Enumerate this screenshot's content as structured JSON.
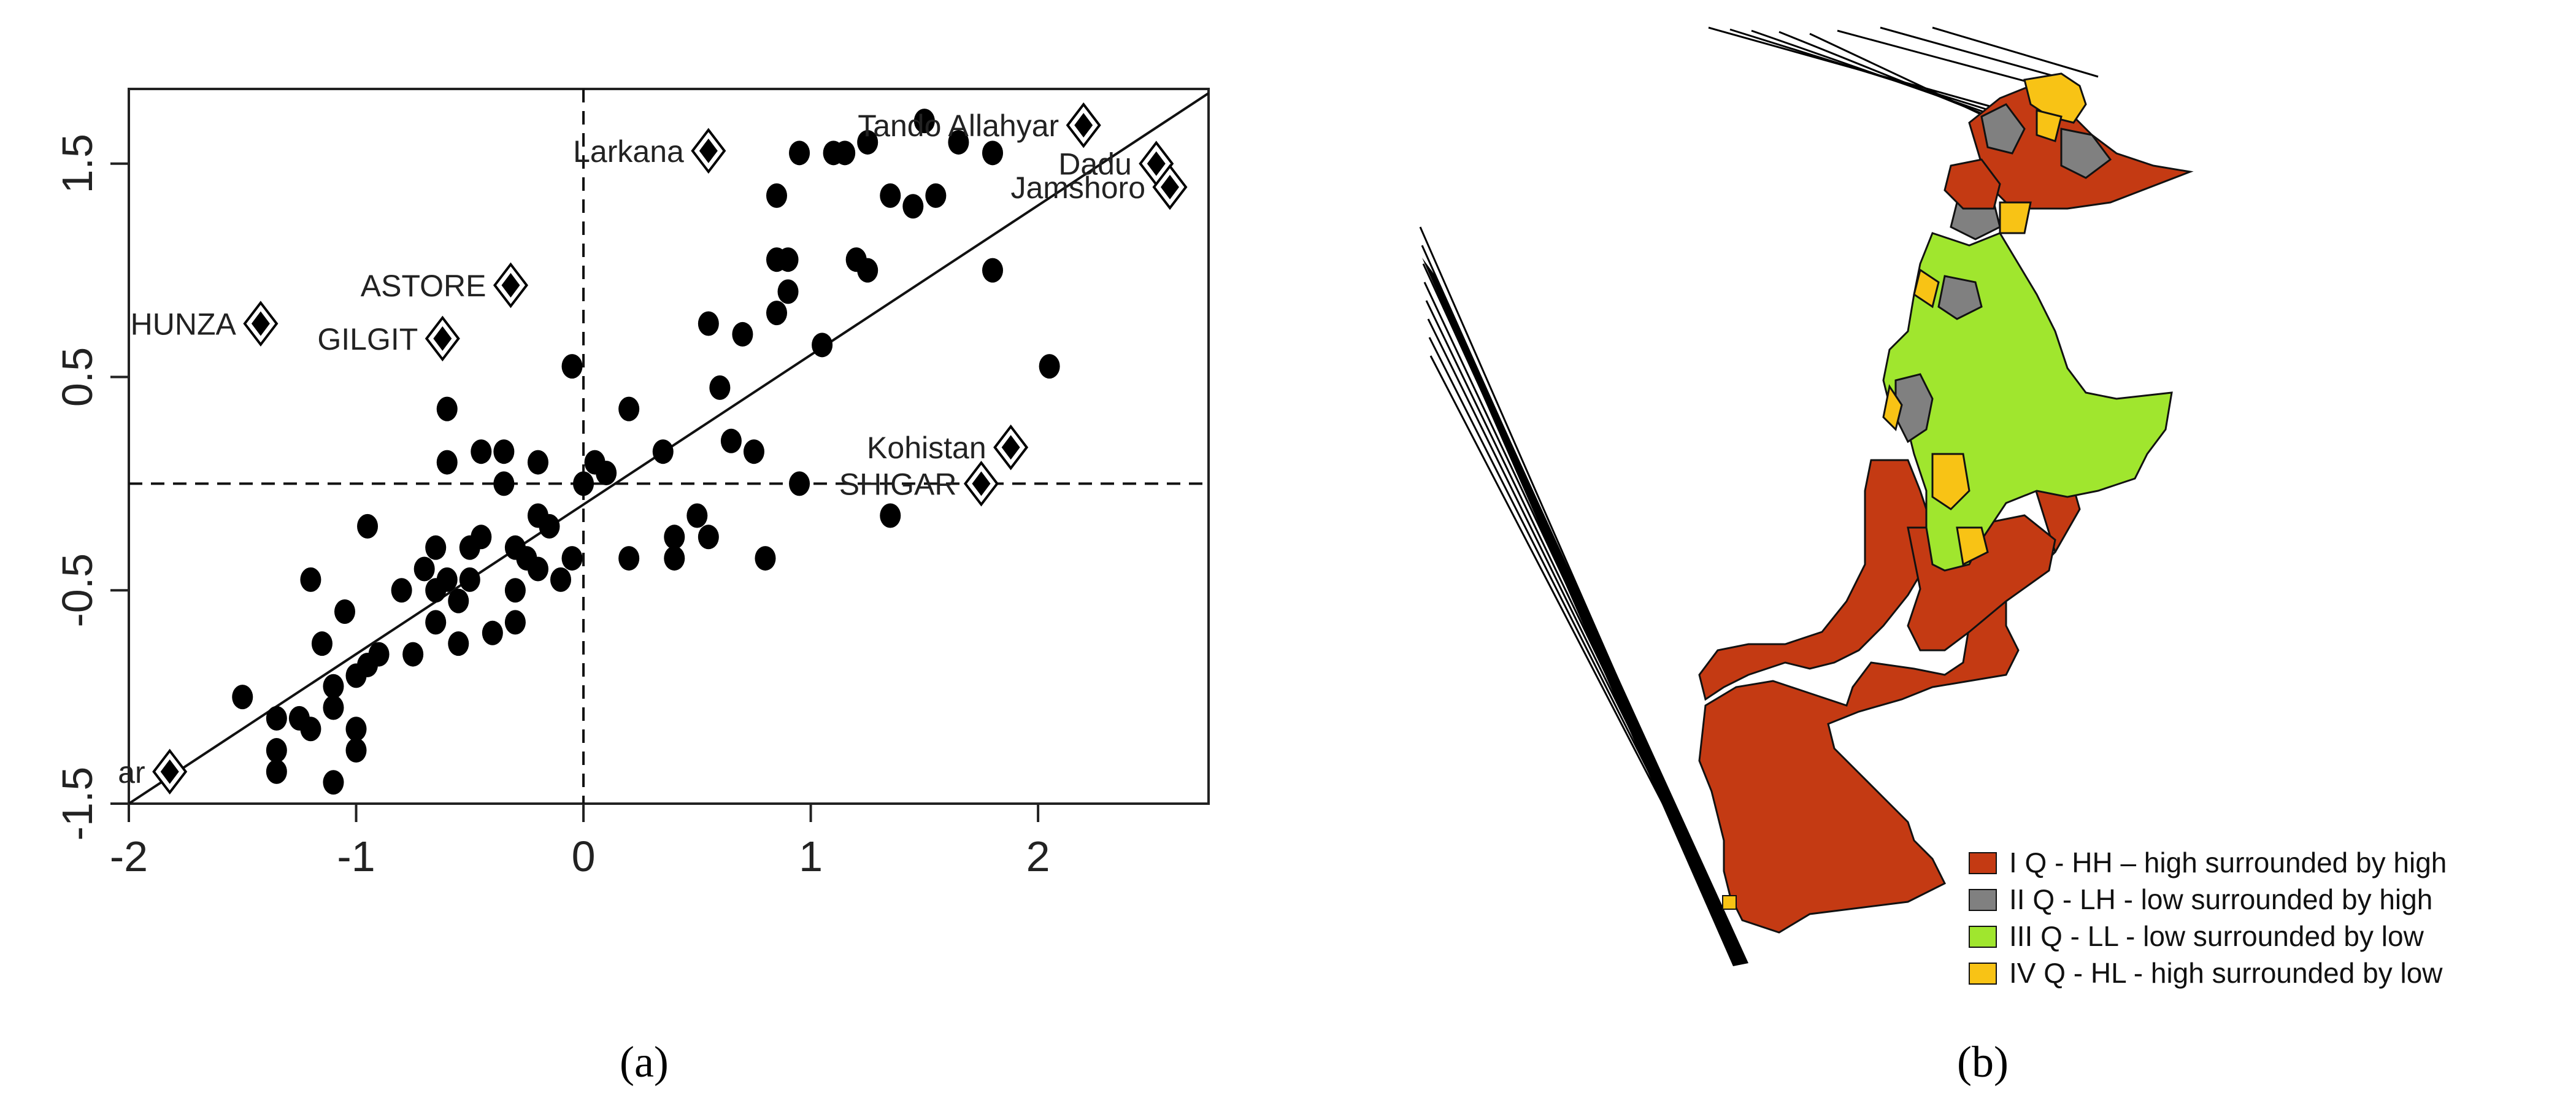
{
  "captions": {
    "a": "(a)",
    "b": "(b)"
  },
  "chart_data": [
    {
      "type": "scatter",
      "title": "",
      "xlabel": "",
      "ylabel": "",
      "xlim": [
        -2,
        2.75
      ],
      "ylim": [
        -1.5,
        1.85
      ],
      "x_ticks": [
        "-2",
        "-1",
        "0",
        "1",
        "2"
      ],
      "y_ticks": [
        "-1.5",
        "-0.5",
        "0.5",
        "1.5"
      ],
      "reference_lines": {
        "x": 0,
        "y": 0,
        "style": "dashed"
      },
      "regression_line": {
        "x": [
          -2,
          2.75
        ],
        "y": [
          -1.5,
          1.83
        ]
      },
      "points": [
        [
          -1.5,
          -1.0
        ],
        [
          -1.35,
          -1.1
        ],
        [
          -1.35,
          -1.25
        ],
        [
          -1.35,
          -1.35
        ],
        [
          -1.25,
          -1.1
        ],
        [
          -1.2,
          -0.45
        ],
        [
          -1.2,
          -1.15
        ],
        [
          -1.15,
          -0.75
        ],
        [
          -1.1,
          -0.95
        ],
        [
          -1.1,
          -1.05
        ],
        [
          -1.1,
          -1.4
        ],
        [
          -1.05,
          -0.6
        ],
        [
          -1.0,
          -0.9
        ],
        [
          -1.0,
          -1.15
        ],
        [
          -1.0,
          -1.25
        ],
        [
          -0.95,
          -0.2
        ],
        [
          -0.95,
          -0.85
        ],
        [
          -0.9,
          -0.8
        ],
        [
          -0.8,
          -0.5
        ],
        [
          -0.75,
          -0.8
        ],
        [
          -0.7,
          -0.4
        ],
        [
          -0.65,
          -0.3
        ],
        [
          -0.65,
          -0.5
        ],
        [
          -0.65,
          -0.65
        ],
        [
          -0.6,
          0.35
        ],
        [
          -0.6,
          0.1
        ],
        [
          -0.6,
          -0.45
        ],
        [
          -0.55,
          -0.55
        ],
        [
          -0.55,
          -0.75
        ],
        [
          -0.5,
          -0.3
        ],
        [
          -0.5,
          -0.45
        ],
        [
          -0.45,
          0.15
        ],
        [
          -0.45,
          -0.25
        ],
        [
          -0.4,
          -0.7
        ],
        [
          -0.35,
          0.15
        ],
        [
          -0.35,
          0.0
        ],
        [
          -0.3,
          -0.3
        ],
        [
          -0.3,
          -0.5
        ],
        [
          -0.3,
          -0.65
        ],
        [
          -0.25,
          -0.35
        ],
        [
          -0.2,
          0.1
        ],
        [
          -0.2,
          -0.15
        ],
        [
          -0.2,
          -0.4
        ],
        [
          -0.15,
          -0.2
        ],
        [
          -0.1,
          -0.45
        ],
        [
          -0.05,
          0.55
        ],
        [
          -0.05,
          -0.35
        ],
        [
          0.0,
          0.0
        ],
        [
          0.05,
          0.1
        ],
        [
          0.1,
          0.05
        ],
        [
          0.2,
          0.35
        ],
        [
          0.2,
          -0.35
        ],
        [
          0.35,
          0.15
        ],
        [
          0.4,
          -0.25
        ],
        [
          0.4,
          -0.35
        ],
        [
          0.5,
          -0.15
        ],
        [
          0.55,
          0.75
        ],
        [
          0.55,
          -0.25
        ],
        [
          0.6,
          0.45
        ],
        [
          0.65,
          0.2
        ],
        [
          0.7,
          0.7
        ],
        [
          0.75,
          0.15
        ],
        [
          0.8,
          -0.35
        ],
        [
          0.85,
          0.8
        ],
        [
          0.85,
          1.05
        ],
        [
          0.85,
          1.35
        ],
        [
          0.9,
          0.9
        ],
        [
          0.9,
          1.05
        ],
        [
          0.95,
          1.55
        ],
        [
          0.95,
          0.0
        ],
        [
          1.05,
          0.65
        ],
        [
          1.1,
          1.55
        ],
        [
          1.15,
          1.55
        ],
        [
          1.2,
          1.05
        ],
        [
          1.25,
          1.6
        ],
        [
          1.25,
          1.0
        ],
        [
          1.35,
          1.35
        ],
        [
          1.35,
          -0.15
        ],
        [
          1.45,
          1.3
        ],
        [
          1.5,
          1.7
        ],
        [
          1.55,
          1.35
        ],
        [
          1.65,
          1.6
        ],
        [
          1.8,
          1.0
        ],
        [
          1.8,
          1.55
        ],
        [
          2.05,
          0.55
        ]
      ],
      "labeled_points": [
        {
          "name": "Tando Allahyar",
          "x": 2.2,
          "y": 1.68
        },
        {
          "name": "Dadu",
          "x": 2.52,
          "y": 1.5
        },
        {
          "name": "Jamshoro",
          "x": 2.58,
          "y": 1.39
        },
        {
          "name": "Larkana",
          "x": 0.55,
          "y": 1.56
        },
        {
          "name": "ASTORE",
          "x": -0.32,
          "y": 0.93
        },
        {
          "name": "HUNZA",
          "x": -1.42,
          "y": 0.75
        },
        {
          "name": "GILGIT",
          "x": -0.62,
          "y": 0.68
        },
        {
          "name": "Kohistan",
          "x": 1.88,
          "y": 0.17
        },
        {
          "name": "SHIGAR",
          "x": 1.75,
          "y": 0.0
        },
        {
          "name": "ar",
          "x": -1.82,
          "y": -1.35
        }
      ]
    },
    {
      "type": "map",
      "title": "",
      "legend": [
        {
          "label": "I Q - HH – high surrounded by high",
          "color": "#c43a13"
        },
        {
          "label": "II Q - LH - low surrounded by high",
          "color": "#808080"
        },
        {
          "label": "III Q - LL - low surrounded by low",
          "color": "#a0e62e"
        },
        {
          "label": "IV Q - HL - high surrounded by low",
          "color": "#f8c315"
        }
      ]
    }
  ]
}
